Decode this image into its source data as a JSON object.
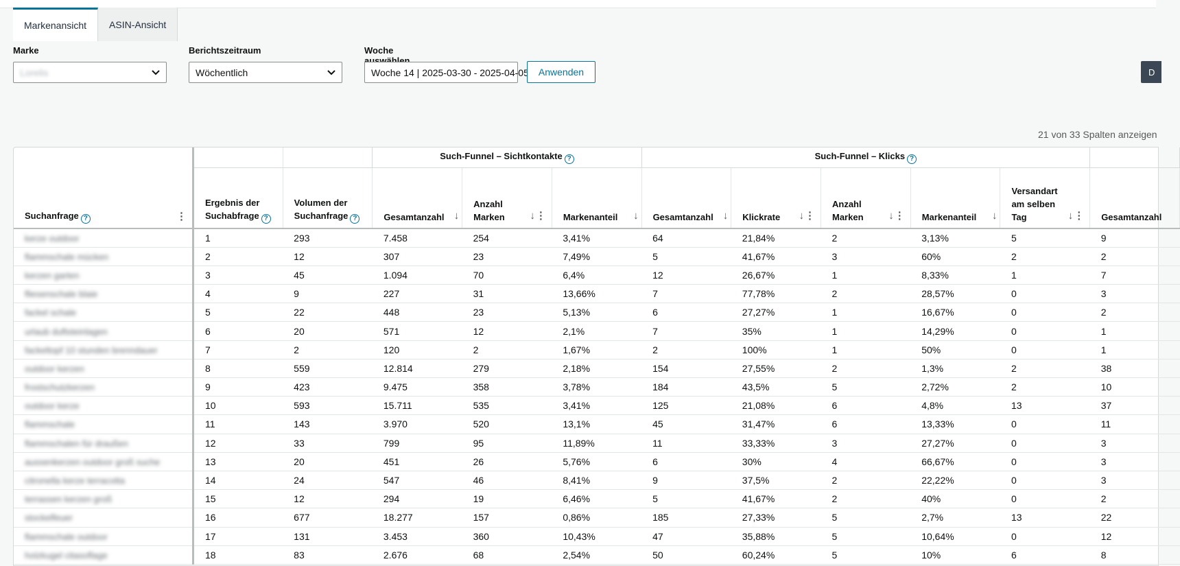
{
  "tabs": [
    "Markenansicht",
    "ASIN-Ansicht"
  ],
  "filters": {
    "brand": {
      "label": "Marke",
      "value": "Lorelis"
    },
    "period": {
      "label": "Berichtszeitraum",
      "value": "Wöchentlich"
    },
    "week": {
      "label": "Woche auswählen",
      "value": "Woche 14 | 2025-03-30 - 2025-04-05"
    }
  },
  "apply_label": "Anwenden",
  "dark_button_label": "D",
  "column_count_text": "21 von 33 Spalten anzeigen",
  "groups": {
    "impressions": "Such-Funnel – Sichtkontakte",
    "clicks": "Such-Funnel – Klicks"
  },
  "columns": {
    "query": "Suchanfrage",
    "rank": "Ergebnis der Suchabfrage",
    "volume": "Volumen der Suchanfrage",
    "imp_total": "Gesamtanzahl",
    "imp_brands": "Anzahl Marken",
    "imp_share": "Markenanteil",
    "clk_total": "Gesamtanzahl",
    "clk_rate": "Klickrate",
    "clk_brands": "Anzahl Marken",
    "clk_share": "Markenanteil",
    "clk_sameday": "Versandart am selben Tag",
    "next_total": "Gesamtanzahl"
  },
  "rows": [
    [
      "kerze outdoor",
      "1",
      "293",
      "7.458",
      "254",
      "3,41%",
      "64",
      "21,84%",
      "2",
      "3,13%",
      "5",
      "9"
    ],
    [
      "flammschale mücken",
      "2",
      "12",
      "307",
      "23",
      "7,49%",
      "5",
      "41,67%",
      "3",
      "60%",
      "2",
      "2"
    ],
    [
      "kerzen garten",
      "3",
      "45",
      "1.094",
      "70",
      "6,4%",
      "12",
      "26,67%",
      "1",
      "8,33%",
      "1",
      "7"
    ],
    [
      "fliesenschale blaie",
      "4",
      "9",
      "227",
      "31",
      "13,66%",
      "7",
      "77,78%",
      "2",
      "28,57%",
      "0",
      "3"
    ],
    [
      "fackel schale",
      "5",
      "22",
      "448",
      "23",
      "5,13%",
      "6",
      "27,27%",
      "1",
      "16,67%",
      "0",
      "2"
    ],
    [
      "urlaub duftsteinlagen",
      "6",
      "20",
      "571",
      "12",
      "2,1%",
      "7",
      "35%",
      "1",
      "14,29%",
      "0",
      "1"
    ],
    [
      "fackeltopf 10 stunden brenndauer",
      "7",
      "2",
      "120",
      "2",
      "1,67%",
      "2",
      "100%",
      "1",
      "50%",
      "0",
      "1"
    ],
    [
      "outdoor kerzen",
      "8",
      "559",
      "12.814",
      "279",
      "2,18%",
      "154",
      "27,55%",
      "2",
      "1,3%",
      "2",
      "38"
    ],
    [
      "frostschutzkerzen",
      "9",
      "423",
      "9.475",
      "358",
      "3,78%",
      "184",
      "43,5%",
      "5",
      "2,72%",
      "2",
      "10"
    ],
    [
      "outdoor kerze",
      "10",
      "593",
      "15.711",
      "535",
      "3,41%",
      "125",
      "21,08%",
      "6",
      "4,8%",
      "13",
      "37"
    ],
    [
      "flammschale",
      "11",
      "143",
      "3.970",
      "520",
      "13,1%",
      "45",
      "31,47%",
      "6",
      "13,33%",
      "0",
      "11"
    ],
    [
      "flammschalen für draußen",
      "12",
      "33",
      "799",
      "95",
      "11,89%",
      "11",
      "33,33%",
      "3",
      "27,27%",
      "0",
      "3"
    ],
    [
      "aussenkerzen outdoor groß suche",
      "13",
      "20",
      "451",
      "26",
      "5,76%",
      "6",
      "30%",
      "4",
      "66,67%",
      "0",
      "3"
    ],
    [
      "citronella kerze terracotta",
      "14",
      "24",
      "547",
      "46",
      "8,41%",
      "9",
      "37,5%",
      "2",
      "22,22%",
      "0",
      "3"
    ],
    [
      "terrassen kerzen groß",
      "15",
      "12",
      "294",
      "19",
      "6,46%",
      "5",
      "41,67%",
      "2",
      "40%",
      "0",
      "2"
    ],
    [
      "stockelfeuer",
      "16",
      "677",
      "18.277",
      "157",
      "0,86%",
      "185",
      "27,33%",
      "5",
      "2,7%",
      "13",
      "22"
    ],
    [
      "flammschale outdoor",
      "17",
      "131",
      "3.453",
      "360",
      "10,43%",
      "47",
      "35,88%",
      "5",
      "10,64%",
      "0",
      "12"
    ],
    [
      "holzkugel citasoflage",
      "18",
      "83",
      "2.676",
      "68",
      "2,54%",
      "50",
      "60,24%",
      "5",
      "10%",
      "6",
      "8"
    ]
  ]
}
